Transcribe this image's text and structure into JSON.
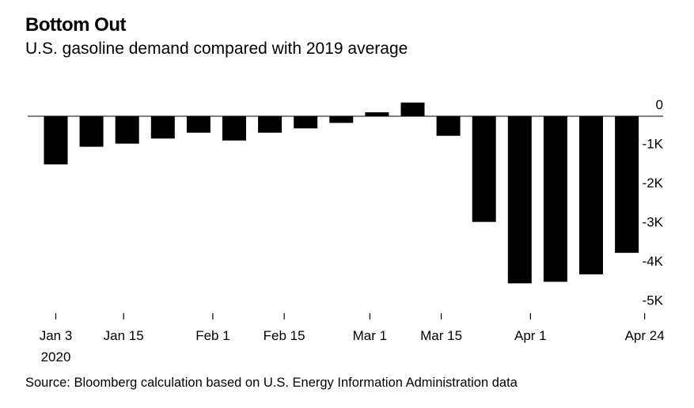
{
  "chart_data": {
    "type": "bar",
    "title": "Bottom Out",
    "subtitle": "U.S. gasoline demand compared with 2019 average",
    "source": "Source: Bloomberg calculation based on U.S. Energy Information Administration data",
    "x": [
      "2020-01-03",
      "2020-01-10",
      "2020-01-17",
      "2020-01-24",
      "2020-01-31",
      "2020-02-07",
      "2020-02-14",
      "2020-02-21",
      "2020-02-28",
      "2020-03-06",
      "2020-03-13",
      "2020-03-20",
      "2020-03-27",
      "2020-04-03",
      "2020-04-10",
      "2020-04-17",
      "2020-04-24"
    ],
    "values": [
      -1230,
      -780,
      -700,
      -570,
      -420,
      -620,
      -420,
      -310,
      -170,
      100,
      350,
      -500,
      -2700,
      -4270,
      -4230,
      -4040,
      -3490
    ],
    "ylim": [
      -5000,
      0
    ],
    "yticks": [
      {
        "value": 0,
        "label": "0"
      },
      {
        "value": -1000,
        "label": "-1K"
      },
      {
        "value": -2000,
        "label": "-2K"
      },
      {
        "value": -3000,
        "label": "-3K"
      },
      {
        "value": -4000,
        "label": "-4K"
      },
      {
        "value": -5000,
        "label": "-5K"
      }
    ],
    "xticks": [
      {
        "index": 0,
        "label": "Jan 3",
        "sublabel": "2020"
      },
      {
        "index": 1.9,
        "label": "Jan 15"
      },
      {
        "index": 4.4,
        "label": "Feb 1"
      },
      {
        "index": 6.4,
        "label": "Feb 15"
      },
      {
        "index": 8.8,
        "label": "Mar 1"
      },
      {
        "index": 10.8,
        "label": "Mar 15"
      },
      {
        "index": 13.3,
        "label": "Apr 1"
      },
      {
        "index": 16.5,
        "label": "Apr 24"
      }
    ],
    "bar_color": "#000000"
  }
}
